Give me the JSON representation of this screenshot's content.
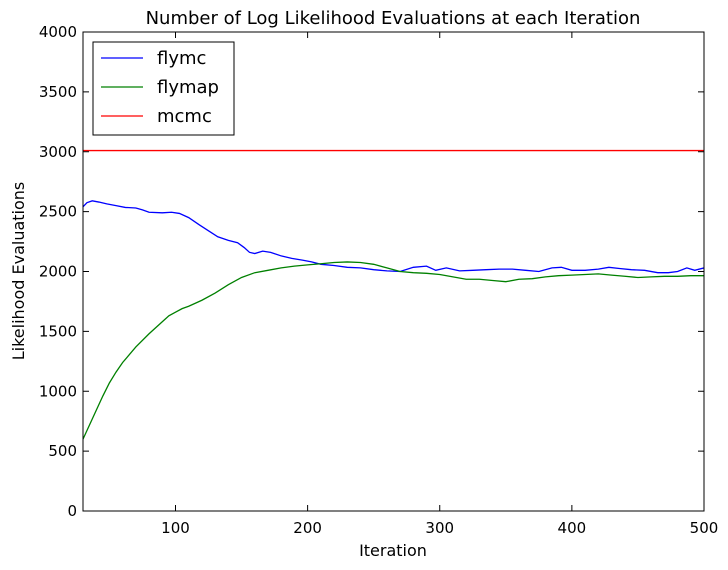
{
  "chart_data": {
    "type": "line",
    "title": "Number of Log Likelihood Evaluations at each Iteration",
    "xlabel": "Iteration",
    "ylabel": "Likelihood Evaluations",
    "xlim": [
      30,
      500
    ],
    "ylim": [
      0,
      4000
    ],
    "xticks": [
      100,
      200,
      300,
      400,
      500
    ],
    "yticks": [
      0,
      500,
      1000,
      1500,
      2000,
      2500,
      3000,
      3500,
      4000
    ],
    "grid": false,
    "legend_position": "top-left",
    "series": [
      {
        "name": "flymc",
        "color": "#0000ff",
        "x": [
          30,
          33,
          37,
          42,
          48,
          55,
          62,
          70,
          75,
          80,
          90,
          97,
          103,
          110,
          118,
          125,
          132,
          140,
          147,
          152,
          156,
          160,
          166,
          172,
          180,
          188,
          196,
          203,
          210,
          220,
          230,
          240,
          250,
          260,
          270,
          280,
          290,
          297,
          305,
          315,
          325,
          335,
          345,
          355,
          365,
          375,
          385,
          392,
          400,
          410,
          420,
          428,
          436,
          445,
          455,
          465,
          473,
          480,
          487,
          493,
          500
        ],
        "values": [
          2540,
          2575,
          2590,
          2580,
          2565,
          2550,
          2535,
          2530,
          2515,
          2495,
          2490,
          2495,
          2485,
          2450,
          2390,
          2340,
          2290,
          2260,
          2240,
          2200,
          2160,
          2150,
          2170,
          2160,
          2130,
          2110,
          2095,
          2080,
          2060,
          2050,
          2035,
          2030,
          2015,
          2005,
          2000,
          2035,
          2045,
          2010,
          2030,
          2005,
          2010,
          2015,
          2020,
          2020,
          2010,
          2000,
          2030,
          2035,
          2010,
          2010,
          2020,
          2035,
          2025,
          2015,
          2010,
          1990,
          1990,
          2000,
          2030,
          2010,
          2030
        ]
      },
      {
        "name": "flymap",
        "color": "#008000",
        "x": [
          30,
          35,
          40,
          45,
          50,
          55,
          60,
          70,
          80,
          90,
          95,
          100,
          105,
          110,
          120,
          130,
          140,
          150,
          160,
          170,
          180,
          190,
          200,
          210,
          220,
          230,
          240,
          250,
          260,
          270,
          280,
          290,
          300,
          310,
          320,
          330,
          340,
          350,
          360,
          370,
          380,
          390,
          400,
          410,
          420,
          430,
          440,
          450,
          460,
          470,
          480,
          490,
          500
        ],
        "values": [
          600,
          720,
          840,
          960,
          1070,
          1160,
          1240,
          1370,
          1480,
          1580,
          1630,
          1660,
          1690,
          1710,
          1760,
          1820,
          1890,
          1950,
          1990,
          2010,
          2030,
          2045,
          2055,
          2065,
          2075,
          2080,
          2075,
          2060,
          2030,
          2000,
          1990,
          1985,
          1975,
          1955,
          1935,
          1935,
          1925,
          1915,
          1935,
          1940,
          1955,
          1965,
          1970,
          1975,
          1980,
          1970,
          1960,
          1950,
          1955,
          1960,
          1960,
          1965,
          1965
        ]
      },
      {
        "name": "mcmc",
        "color": "#ff0000",
        "x": [
          30,
          500
        ],
        "values": [
          3010,
          3010
        ]
      }
    ]
  }
}
